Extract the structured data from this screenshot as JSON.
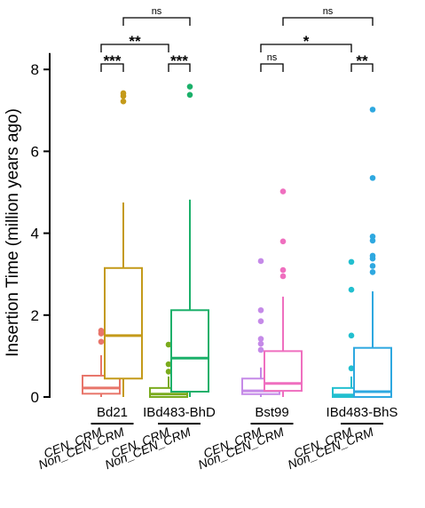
{
  "chart_data": {
    "type": "box",
    "ylabel": "Insertion Time (million years ago)",
    "ylim": [
      0,
      8.4
    ],
    "yticks": [
      0,
      2,
      4,
      6,
      8
    ],
    "grid": false,
    "legend": "none",
    "groups": [
      "Bd21",
      "IBd483-BhD",
      "Bst99",
      "IBd483-BhS"
    ],
    "category_labels": [
      "CEN_CRM",
      "Non_CEN_CRM"
    ],
    "boxes": [
      {
        "group": "Bd21",
        "category": "CEN_CRM",
        "color": "#e8756a",
        "q1": 0.08,
        "median": 0.22,
        "q3": 0.52,
        "whisker_low": 0.0,
        "whisker_high": 1.02,
        "outliers": [
          1.35,
          1.55,
          1.62
        ]
      },
      {
        "group": "Bd21",
        "category": "Non_CEN_CRM",
        "color": "#c49a1a",
        "q1": 0.45,
        "median": 1.5,
        "q3": 3.15,
        "whisker_low": 0.0,
        "whisker_high": 4.75,
        "outliers": [
          7.22,
          7.35,
          7.42
        ]
      },
      {
        "group": "IBd483-BhD",
        "category": "CEN_CRM",
        "color": "#7aab1e",
        "q1": 0.0,
        "median": 0.07,
        "q3": 0.22,
        "whisker_low": 0.0,
        "whisker_high": 0.5,
        "outliers": [
          0.62,
          0.8,
          1.28
        ]
      },
      {
        "group": "IBd483-BhD",
        "category": "Non_CEN_CRM",
        "color": "#1bb06a",
        "q1": 0.13,
        "median": 0.95,
        "q3": 2.12,
        "whisker_low": 0.0,
        "whisker_high": 4.82,
        "outliers": [
          7.38,
          7.58
        ]
      },
      {
        "group": "Bst99",
        "category": "CEN_CRM",
        "color": "#c58ae8",
        "q1": 0.07,
        "median": 0.15,
        "q3": 0.45,
        "whisker_low": 0.0,
        "whisker_high": 0.72,
        "outliers": [
          1.15,
          1.3,
          1.42,
          1.85,
          2.12,
          3.32
        ]
      },
      {
        "group": "Bst99",
        "category": "Non_CEN_CRM",
        "color": "#ef6fbf",
        "q1": 0.15,
        "median": 0.33,
        "q3": 1.12,
        "whisker_low": 0.0,
        "whisker_high": 2.45,
        "outliers": [
          2.95,
          3.1,
          3.8,
          5.02
        ]
      },
      {
        "group": "IBd483-BhS",
        "category": "CEN_CRM",
        "color": "#22bfcf",
        "q1": 0.0,
        "median": 0.05,
        "q3": 0.22,
        "whisker_low": 0.0,
        "whisker_high": 0.5,
        "outliers": [
          0.7,
          1.5,
          2.62,
          3.3
        ]
      },
      {
        "group": "IBd483-BhS",
        "category": "Non_CEN_CRM",
        "color": "#2ea8e0",
        "q1": 0.0,
        "median": 0.13,
        "q3": 1.2,
        "whisker_low": 0.0,
        "whisker_high": 2.58,
        "outliers": [
          3.05,
          3.2,
          3.38,
          3.45,
          3.82,
          3.92,
          5.35,
          7.02
        ]
      }
    ],
    "significance": [
      {
        "from": 0,
        "to": 1,
        "level": 1,
        "label": "***"
      },
      {
        "from": 2,
        "to": 3,
        "level": 1,
        "label": "***"
      },
      {
        "from": 0,
        "to": 2,
        "level": 2,
        "label": "**"
      },
      {
        "from": 1,
        "to": 3,
        "level": 3,
        "label": "ns"
      },
      {
        "from": 4,
        "to": 5,
        "level": 1,
        "label": "ns"
      },
      {
        "from": 6,
        "to": 7,
        "level": 1,
        "label": "**"
      },
      {
        "from": 4,
        "to": 6,
        "level": 2,
        "label": "*"
      },
      {
        "from": 5,
        "to": 7,
        "level": 3,
        "label": "ns"
      }
    ]
  }
}
